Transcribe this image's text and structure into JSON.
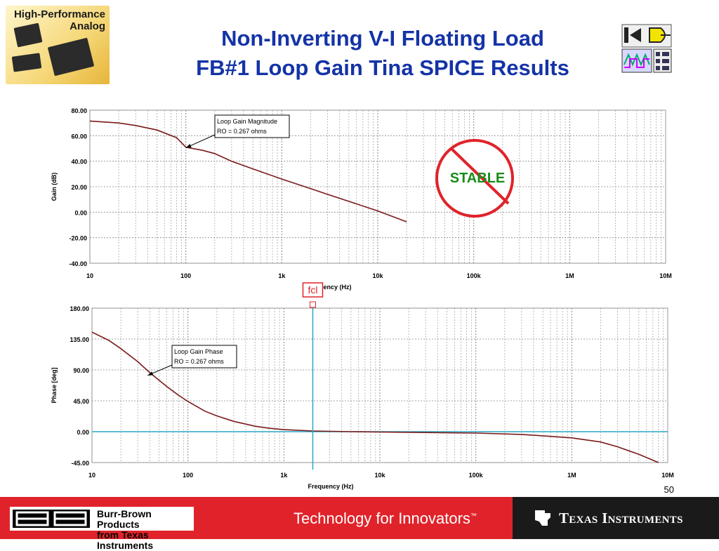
{
  "logo": {
    "line1": "High-Performance",
    "line2": "Analog",
    "icon": "chip-icon"
  },
  "title": {
    "line1": "Non-Inverting V-I Floating Load",
    "line2": "FB#1 Loop Gain Tina SPICE Results"
  },
  "tina_icon": "tina-spice-icon",
  "page_number": "50",
  "footer": {
    "bb_line1": "Burr-Brown Products",
    "bb_line2": "from Texas Instruments",
    "tagline": "Technology for Innovators",
    "tagline_tm": "™",
    "ti_name": "Texas Instruments",
    "colors": {
      "bar": "#e0232a",
      "dark": "#1a1a1a"
    }
  },
  "stable_stamp": {
    "text": "STABLE",
    "text_color": "#1a8a1a",
    "circle_color": "#e0232a"
  },
  "fcl_marker": {
    "label": "fcl",
    "frequency": 2000,
    "color": "#2aa7c9"
  },
  "chart_data": [
    {
      "type": "line",
      "xscale": "log",
      "xlim": [
        10,
        10000000
      ],
      "ylim": [
        -40,
        80
      ],
      "xlabel": "Frequency (Hz)",
      "ylabel": "Gain (dB)",
      "xticks": [
        "10",
        "100",
        "1k",
        "10k",
        "100k",
        "1M",
        "10M"
      ],
      "yticks": [
        "80.00",
        "60.00",
        "40.00",
        "20.00",
        "0.00",
        "-20.00",
        "-40.00"
      ],
      "grid": true,
      "annotation": {
        "line1": "Loop Gain Magnitude",
        "line2": "RO = 0.267 ohms",
        "x": 100,
        "y": 50.5
      },
      "series": [
        {
          "color": "#7a1a1a",
          "x": [
            10,
            20,
            30,
            50,
            80,
            100,
            150,
            200,
            300,
            500,
            1000,
            2000,
            3000,
            5000,
            10000,
            20000
          ],
          "y": [
            71.5,
            70,
            68,
            64.5,
            58.5,
            51,
            48.5,
            46,
            40,
            34,
            26,
            18.5,
            14,
            8.5,
            1,
            -7.5
          ]
        }
      ]
    },
    {
      "type": "line",
      "xscale": "log",
      "xlim": [
        10,
        10000000
      ],
      "ylim": [
        -45,
        180
      ],
      "xlabel": "Frequency (Hz)",
      "ylabel": "Phase [deg]",
      "xticks": [
        "10",
        "100",
        "1k",
        "10k",
        "100k",
        "1M",
        "10M"
      ],
      "yticks": [
        "180.00",
        "135.00",
        "90.00",
        "45.00",
        "0.00",
        "-45.00"
      ],
      "grid": true,
      "annotation": {
        "line1": "Loop Gain Phase",
        "line2": "RO = 0.267 ohms",
        "x": 38,
        "y": 82
      },
      "series": [
        {
          "color": "#7a1a1a",
          "x": [
            10,
            15,
            20,
            30,
            40,
            60,
            80,
            100,
            150,
            200,
            300,
            500,
            700,
            1000,
            2000,
            5000,
            10000,
            100000,
            300000,
            1000000,
            2000000,
            3000000,
            5000000,
            8000000
          ],
          "y": [
            145,
            133,
            121,
            102,
            86,
            66,
            53,
            44,
            30,
            23,
            15,
            8,
            5,
            3,
            1,
            0,
            -0.5,
            -2,
            -4,
            -9,
            -15,
            -22,
            -33,
            -45
          ]
        }
      ]
    }
  ]
}
